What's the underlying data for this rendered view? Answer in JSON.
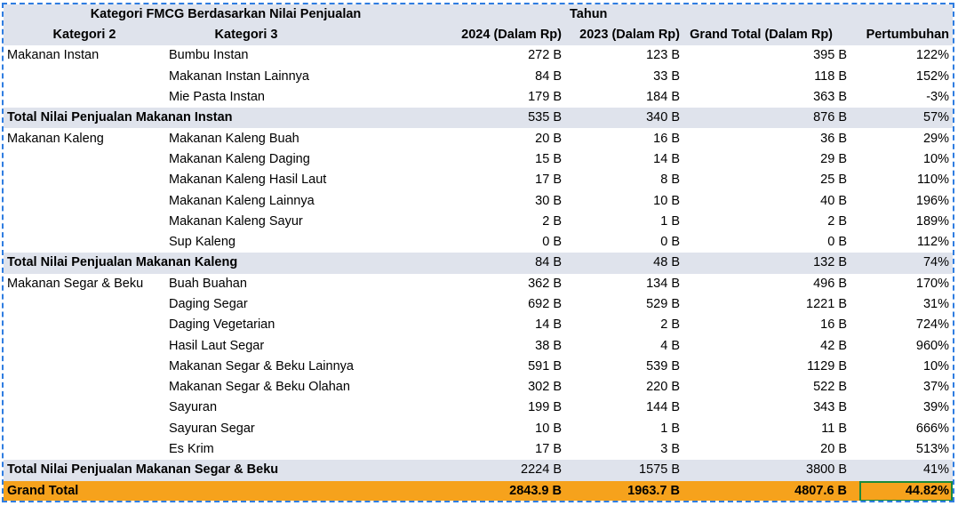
{
  "header": {
    "title": "Kategori FMCG Berdasarkan Nilai Penjualan",
    "year_group": "Tahun",
    "columns": [
      "Kategori 2",
      "Kategori 3",
      "2024 (Dalam Rp)",
      "2023 (Dalam Rp)",
      "Grand Total (Dalam Rp)",
      "Pertumbuhan"
    ]
  },
  "groups": [
    {
      "name": "Makanan Instan",
      "rows": [
        [
          "Bumbu Instan",
          "272 B",
          "123 B",
          "395 B",
          "122%"
        ],
        [
          "Makanan Instan Lainnya",
          "84 B",
          "33 B",
          "118 B",
          "152%"
        ],
        [
          "Mie Pasta Instan",
          "179 B",
          "184 B",
          "363 B",
          "-3%"
        ]
      ],
      "total": [
        "Total Nilai Penjualan Makanan Instan",
        "535 B",
        "340 B",
        "876 B",
        "57%"
      ]
    },
    {
      "name": "Makanan Kaleng",
      "rows": [
        [
          "Makanan Kaleng Buah",
          "20 B",
          "16 B",
          "36 B",
          "29%"
        ],
        [
          "Makanan Kaleng Daging",
          "15 B",
          "14 B",
          "29 B",
          "10%"
        ],
        [
          "Makanan Kaleng Hasil Laut",
          "17 B",
          "8 B",
          "25 B",
          "110%"
        ],
        [
          "Makanan Kaleng Lainnya",
          "30 B",
          "10 B",
          "40 B",
          "196%"
        ],
        [
          "Makanan Kaleng Sayur",
          "2 B",
          "1 B",
          "2 B",
          "189%"
        ],
        [
          "Sup Kaleng",
          "0 B",
          "0 B",
          "0 B",
          "112%"
        ]
      ],
      "total": [
        "Total Nilai Penjualan Makanan Kaleng",
        "84 B",
        "48 B",
        "132 B",
        "74%"
      ]
    },
    {
      "name": "Makanan Segar & Beku",
      "rows": [
        [
          "Buah Buahan",
          "362 B",
          "134 B",
          "496 B",
          "170%"
        ],
        [
          "Daging Segar",
          "692 B",
          "529 B",
          "1221 B",
          "31%"
        ],
        [
          "Daging Vegetarian",
          "14 B",
          "2 B",
          "16 B",
          "724%"
        ],
        [
          "Hasil Laut Segar",
          "38 B",
          "4 B",
          "42 B",
          "960%"
        ],
        [
          "Makanan Segar & Beku Lainnya",
          "591 B",
          "539 B",
          "1129 B",
          "10%"
        ],
        [
          "Makanan Segar & Beku Olahan",
          "302 B",
          "220 B",
          "522 B",
          "37%"
        ],
        [
          "Sayuran",
          "199 B",
          "144 B",
          "343 B",
          "39%"
        ],
        [
          "Sayuran Segar",
          "10 B",
          "1 B",
          "11 B",
          "666%"
        ],
        [
          "Es Krim",
          "17 B",
          "3 B",
          "20 B",
          "513%"
        ]
      ],
      "total": [
        "Total Nilai Penjualan Makanan Segar & Beku",
        "2224 B",
        "1575 B",
        "3800 B",
        "41%"
      ]
    }
  ],
  "grand_total": [
    "Grand Total",
    "2843.9 B",
    "1963.7 B",
    "4807.6 B",
    "44.82%"
  ],
  "colors": {
    "header_bg": "#dfe3ec",
    "grand_bg": "#f6a21c",
    "selection": "#2f7de1",
    "active_cell": "#1c8a3a"
  }
}
